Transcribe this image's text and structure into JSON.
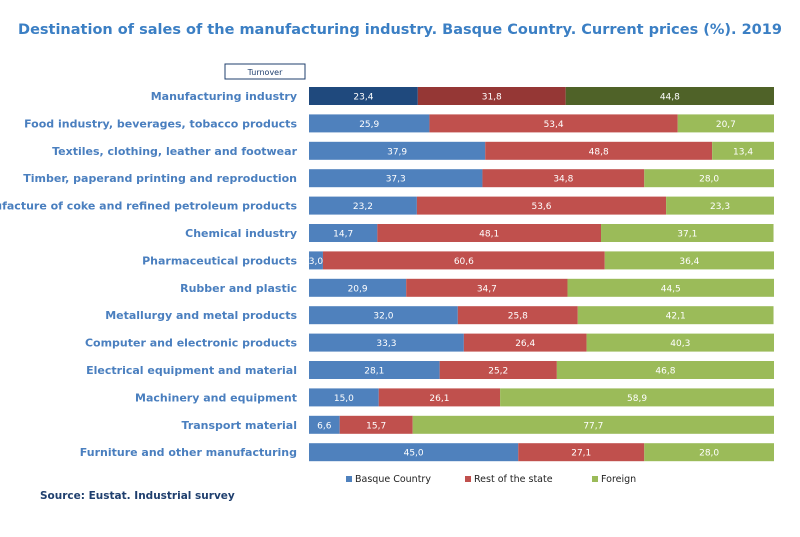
{
  "chart_data": {
    "type": "bar",
    "orientation": "horizontal",
    "stacked": true,
    "title": "Destination of sales of the manufacturing industry. Basque Country. Current prices (%). 2019",
    "filter_label": "Turnover",
    "source": "Source: Eustat. Industrial survey",
    "xlim": [
      0,
      100
    ],
    "categories": [
      "Manufacturing industry",
      "Food industry, beverages, tobacco products",
      "Textiles, clothing, leather and footwear",
      "Timber, paperand printing and reproduction",
      "Manufacture of coke and refined petroleum products",
      "Chemical industry",
      "Pharmaceutical products",
      "Rubber and plastic",
      "Metallurgy and metal products",
      "Computer and electronic products",
      "Electrical equipment and material",
      "Machinery and equipment",
      "Transport material",
      "Furniture and other manufacturing"
    ],
    "value_labels": [
      [
        "23,4",
        "31,8",
        "44,8"
      ],
      [
        "25,9",
        "53,4",
        "20,7"
      ],
      [
        "37,9",
        "48,8",
        "13,4"
      ],
      [
        "37,3",
        "34,8",
        "28,0"
      ],
      [
        "23,2",
        "53,6",
        "23,3"
      ],
      [
        "14,7",
        "48,1",
        "37,1"
      ],
      [
        "3,0",
        "60,6",
        "36,4"
      ],
      [
        "20,9",
        "34,7",
        "44,5"
      ],
      [
        "32,0",
        "25,8",
        "42,1"
      ],
      [
        "33,3",
        "26,4",
        "40,3"
      ],
      [
        "28,1",
        "25,2",
        "46,8"
      ],
      [
        "15,0",
        "26,1",
        "58,9"
      ],
      [
        "6,6",
        "15,7",
        "77,7"
      ],
      [
        "45,0",
        "27,1",
        "28,0"
      ]
    ],
    "series": [
      {
        "name": "Basque Country",
        "color": "#4f81bd",
        "highlight_color": "#1f497d",
        "values": [
          23.4,
          25.9,
          37.9,
          37.3,
          23.2,
          14.7,
          3.0,
          20.9,
          32.0,
          33.3,
          28.1,
          15.0,
          6.6,
          45.0
        ]
      },
      {
        "name": "Rest of the state",
        "color": "#c0504d",
        "highlight_color": "#953735",
        "values": [
          31.8,
          53.4,
          48.8,
          34.8,
          53.6,
          48.1,
          60.6,
          34.7,
          25.8,
          26.4,
          25.2,
          26.1,
          15.7,
          27.1
        ]
      },
      {
        "name": "Foreign",
        "color": "#9bbb59",
        "highlight_color": "#4f6228",
        "values": [
          44.8,
          20.7,
          13.4,
          28.0,
          23.3,
          37.1,
          36.4,
          44.5,
          42.1,
          40.3,
          46.8,
          58.9,
          77.7,
          28.0
        ]
      }
    ]
  }
}
